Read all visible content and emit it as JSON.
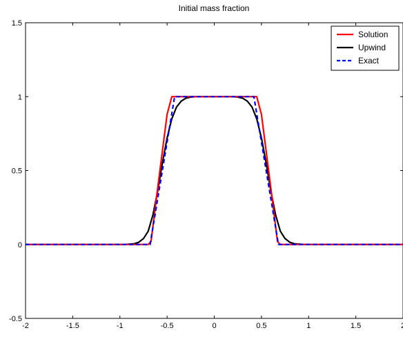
{
  "chart_data": {
    "type": "line",
    "title": "Initial mass fraction",
    "xlabel": "",
    "ylabel": "",
    "xlim": [
      -2,
      2
    ],
    "ylim": [
      -0.5,
      1.5
    ],
    "xticks": [
      "-2",
      "-1.5",
      "-1",
      "-0.5",
      "0",
      "0.5",
      "1",
      "1.5",
      "2"
    ],
    "yticks": [
      "-0.5",
      "0",
      "0.5",
      "1",
      "1.5"
    ],
    "grid": false,
    "legend_position": "top-right",
    "series": [
      {
        "name": "Solution",
        "color": "#ff0000",
        "style": "solid",
        "x": [
          -2,
          -0.7,
          -0.67,
          -0.6,
          -0.5,
          -0.45,
          -0.42,
          0.42,
          0.45,
          0.5,
          0.6,
          0.67,
          0.7,
          2
        ],
        "y": [
          0,
          0,
          0.02,
          0.38,
          0.88,
          1.0,
          1.0,
          1.0,
          1.0,
          0.88,
          0.38,
          0.02,
          0,
          0
        ]
      },
      {
        "name": "Upwind",
        "color": "#000000",
        "style": "solid",
        "x": [
          -2,
          -0.95,
          -0.85,
          -0.8,
          -0.75,
          -0.7,
          -0.65,
          -0.6,
          -0.55,
          -0.5,
          -0.45,
          -0.4,
          -0.35,
          -0.3,
          -0.25,
          -0.2,
          0.2,
          0.25,
          0.3,
          0.35,
          0.4,
          0.45,
          0.5,
          0.55,
          0.6,
          0.65,
          0.7,
          0.75,
          0.8,
          0.85,
          0.95,
          2
        ],
        "y": [
          0,
          0,
          0.005,
          0.015,
          0.04,
          0.09,
          0.2,
          0.36,
          0.55,
          0.72,
          0.85,
          0.93,
          0.97,
          0.99,
          0.997,
          1.0,
          1.0,
          0.997,
          0.99,
          0.97,
          0.93,
          0.85,
          0.72,
          0.55,
          0.36,
          0.2,
          0.09,
          0.04,
          0.015,
          0.005,
          0,
          0
        ]
      },
      {
        "name": "Exact",
        "color": "#0000ff",
        "style": "dashed",
        "x": [
          -2,
          -0.68,
          -0.42,
          0.42,
          0.68,
          2
        ],
        "y": [
          0,
          0,
          1,
          1,
          0,
          0
        ]
      }
    ]
  }
}
